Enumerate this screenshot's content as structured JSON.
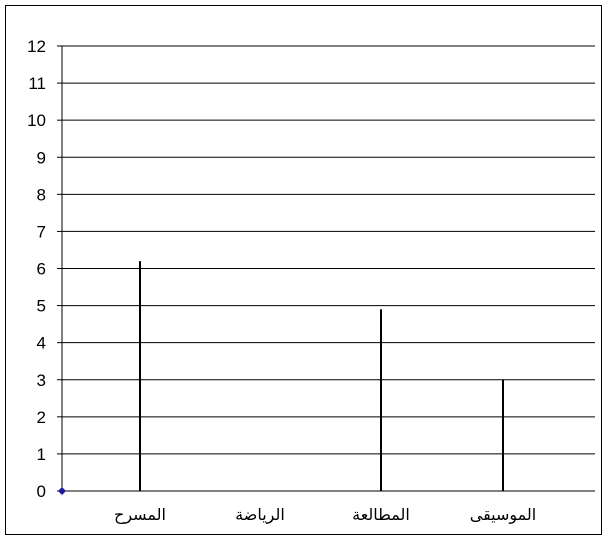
{
  "chart_data": {
    "type": "bar",
    "categories": [
      "المسرح",
      "الرياضة",
      "المطالعة",
      "الموسيقى"
    ],
    "values": [
      6.2,
      0,
      4.9,
      3
    ],
    "ylim": [
      0,
      12
    ],
    "yticks": [
      "0",
      "1",
      "2",
      "3",
      "4",
      "5",
      "6",
      "7",
      "8",
      "9",
      "10",
      "11",
      "12"
    ],
    "grid": true,
    "colors": {
      "bar": "#000000",
      "grid": "#000000",
      "origin_marker": "#1a1aa0"
    }
  }
}
